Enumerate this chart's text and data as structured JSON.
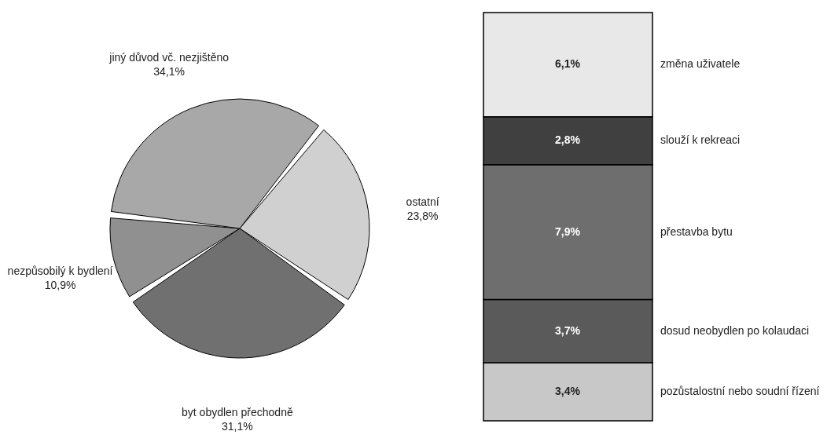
{
  "chart_data": [
    {
      "type": "pie",
      "categories": [
        "ostatní",
        "byt obydlen přechodně",
        "nezpůsobilý k bydlení",
        "jiný důvod vč. nezjištěno"
      ],
      "values": [
        23.8,
        31.1,
        10.9,
        34.1
      ],
      "colors": [
        "#d0d0d0",
        "#707070",
        "#909090",
        "#a8a8a8"
      ],
      "value_labels": [
        "23,8%",
        "31,1%",
        "10,9%",
        "34,1%"
      ]
    },
    {
      "type": "bar",
      "stacked": true,
      "categories": [
        null
      ],
      "series": [
        {
          "name": "pozůstalostní nebo soudní řízení",
          "color": "#c8c8c8",
          "values": [
            3.4
          ],
          "value_labels": [
            "3,4%"
          ]
        },
        {
          "name": "dosud neobydlen po kolaudaci",
          "color": "#5a5a5a",
          "values": [
            3.7
          ],
          "value_labels": [
            "3,7%"
          ]
        },
        {
          "name": "přestavba bytu",
          "color": "#6e6e6e",
          "values": [
            7.9
          ],
          "value_labels": [
            "7,9%"
          ]
        },
        {
          "name": "slouží k rekreaci",
          "color": "#404040",
          "values": [
            2.8
          ],
          "value_labels": [
            "2,8%"
          ]
        },
        {
          "name": "změna uživatele",
          "color": "#e8e8e8",
          "values": [
            6.1
          ],
          "value_labels": [
            "6,1%"
          ]
        }
      ]
    }
  ]
}
